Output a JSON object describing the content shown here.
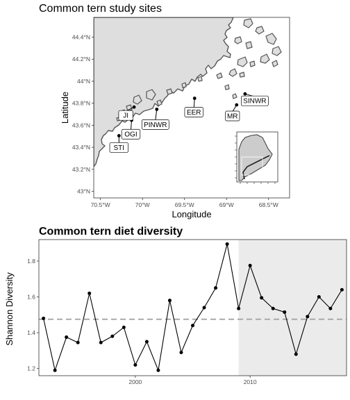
{
  "map_panel": {
    "title": "Common tern study sites",
    "xlabel": "Longitude",
    "ylabel": "Latitude",
    "x_ticks": [
      "70.5°W",
      "70°W",
      "69.5°W",
      "69°W",
      "68.5°W"
    ],
    "x_tick_values": [
      -70.5,
      -70.0,
      -69.5,
      -69.0,
      -68.5
    ],
    "y_ticks": [
      "43°N",
      "43.2°N",
      "43.4°N",
      "43.6°N",
      "43.8°N",
      "44°N",
      "44.2°N",
      "44.4°N"
    ],
    "y_tick_values": [
      43.0,
      43.2,
      43.4,
      43.6,
      43.8,
      44.0,
      44.2,
      44.4
    ],
    "xlim": [
      -70.58,
      -68.25
    ],
    "ylim": [
      42.94,
      44.58
    ],
    "land_color": "#dedede",
    "coast_color": "#555555",
    "sites": [
      {
        "label": "STI",
        "lon": -70.28,
        "lat": 43.505
      },
      {
        "label": "OGI",
        "lon": -70.13,
        "lat": 43.645
      },
      {
        "label": "JI",
        "lon": -70.1,
        "lat": 43.765
      },
      {
        "label": "PINWR",
        "lon": -69.83,
        "lat": 43.745
      },
      {
        "label": "EER",
        "lon": -69.38,
        "lat": 43.845
      },
      {
        "label": "MR",
        "lon": -68.88,
        "lat": 43.785
      },
      {
        "label": "SINWR",
        "lon": -68.78,
        "lat": 43.885
      }
    ]
  },
  "chart_data": {
    "type": "line",
    "title": "Common tern diet diversity",
    "xlabel": "",
    "ylabel": "Shannon Diversity",
    "x_ticks": [
      "2000",
      "2010"
    ],
    "x_tick_values": [
      2000,
      2010
    ],
    "y_ticks": [
      "1.2",
      "1.4",
      "1.6",
      "1.8"
    ],
    "y_tick_values": [
      1.2,
      1.4,
      1.6,
      1.8
    ],
    "xlim": [
      1991.6,
      2018.4
    ],
    "ylim": [
      1.16,
      1.92
    ],
    "x": [
      1992,
      1993,
      1994,
      1995,
      1996,
      1997,
      1998,
      1999,
      2000,
      2001,
      2002,
      2003,
      2004,
      2005,
      2006,
      2007,
      2008,
      2009,
      2010,
      2011,
      2012,
      2013,
      2014,
      2015,
      2016,
      2017,
      2018
    ],
    "series": [
      {
        "values": [
          1.48,
          1.19,
          1.375,
          1.345,
          1.62,
          1.345,
          1.38,
          1.43,
          1.22,
          1.35,
          1.19,
          1.58,
          1.29,
          1.44,
          1.54,
          1.65,
          1.895,
          1.535,
          1.775,
          1.595,
          1.535,
          1.515,
          1.28,
          1.49,
          1.6,
          1.535,
          1.64
        ]
      }
    ],
    "reference_line": 1.475,
    "shaded_region": [
      2009.0,
      2018.4
    ],
    "shade_color": "#ebebeb",
    "ref_color": "#a9a9a9",
    "line_color": "#000000"
  }
}
